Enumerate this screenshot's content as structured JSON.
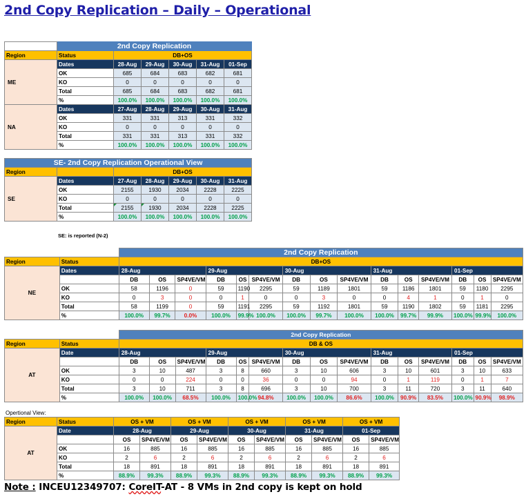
{
  "page_title": "2nd Copy Replication – Daily – Operational",
  "t1": {
    "title": "2nd Copy Replication",
    "region_label": "Region",
    "status_label": "Status",
    "group_label": "DB+OS",
    "blocks": [
      {
        "region": "ME",
        "dates_label": "Dates",
        "dates": [
          "28-Aug",
          "29-Aug",
          "30-Aug",
          "31-Aug",
          "01-Sep"
        ],
        "ok": [
          "685",
          "684",
          "683",
          "682",
          "681"
        ],
        "ko": [
          "0",
          "0",
          "0",
          "0",
          "0"
        ],
        "total": [
          "685",
          "684",
          "683",
          "682",
          "681"
        ],
        "pct": [
          "100.0%",
          "100.0%",
          "100.0%",
          "100.0%",
          "100.0%"
        ]
      },
      {
        "region": "NA",
        "dates_label": "Dates",
        "dates": [
          "27-Aug",
          "28-Aug",
          "29-Aug",
          "30-Aug",
          "31-Aug"
        ],
        "ok": [
          "331",
          "331",
          "313",
          "331",
          "332"
        ],
        "ko": [
          "0",
          "0",
          "0",
          "0",
          "0"
        ],
        "total": [
          "331",
          "331",
          "313",
          "331",
          "332"
        ],
        "pct": [
          "100.0%",
          "100.0%",
          "100.0%",
          "100.0%",
          "100.0%"
        ]
      }
    ],
    "row_labels": {
      "ok": "OK",
      "ko": "KO",
      "total": "Total",
      "pct": "%"
    }
  },
  "t2": {
    "title": "SE- 2nd Copy Replication Operational View",
    "region_label": "Region",
    "group_label": "DB+OS",
    "region": "SE",
    "dates_label": "Dates",
    "dates": [
      "27-Aug",
      "28-Aug",
      "29-Aug",
      "30-Aug",
      "31-Aug"
    ],
    "ok": [
      "2155",
      "1930",
      "2034",
      "2228",
      "2225"
    ],
    "ko": [
      "0",
      "0",
      "0",
      "0",
      "0"
    ],
    "total": [
      "2155",
      "1930",
      "2034",
      "2228",
      "2225"
    ],
    "pct": [
      "100.0%",
      "100.0%",
      "100.0%",
      "100.0%",
      "100.0%"
    ],
    "note": "SE: is reported (N-2)"
  },
  "t3": {
    "title": "2nd Copy Replication",
    "region_label": "Region",
    "status_label": "Status",
    "group_label": "DB+OS",
    "dates_label": "Dates",
    "region": "NE",
    "dates": [
      "28-Aug",
      "29-Aug",
      "30-Aug",
      "31-Aug",
      "01-Sep"
    ],
    "cols": [
      "DB",
      "OS",
      "SP4VE/VM"
    ],
    "ok": [
      "58",
      "1196",
      "0",
      "59",
      "1190",
      "2295",
      "59",
      "1189",
      "1801",
      "59",
      "1186",
      "1801",
      "59",
      "1180",
      "2295"
    ],
    "ko": [
      "0",
      "3",
      "0",
      "0",
      "1",
      "0",
      "0",
      "3",
      "0",
      "0",
      "4",
      "1",
      "0",
      "1",
      "0"
    ],
    "total": [
      "58",
      "1199",
      "0",
      "59",
      "1191",
      "2295",
      "59",
      "1192",
      "1801",
      "59",
      "1190",
      "1802",
      "59",
      "1181",
      "2295"
    ],
    "pct": [
      "100.0%",
      "99.7%",
      "0.0%",
      "100.0%",
      "99.9%",
      "100.0%",
      "100.0%",
      "99.7%",
      "100.0%",
      "100.0%",
      "99.7%",
      "99.9%",
      "100.0%",
      "99.9%",
      "100.0%"
    ]
  },
  "t4": {
    "title": "2nd Copy Replication",
    "region_label": "Region",
    "status_label": "Status",
    "group_label": "DB & OS",
    "dates_label": "Date",
    "region": "AT",
    "dates": [
      "28-Aug",
      "29-Aug",
      "30-Aug",
      "31-Aug",
      "01-Sep"
    ],
    "cols": [
      "DB",
      "OS",
      "SP4VE/VM"
    ],
    "ok": [
      "3",
      "10",
      "487",
      "3",
      "8",
      "660",
      "3",
      "10",
      "606",
      "3",
      "10",
      "601",
      "3",
      "10",
      "633"
    ],
    "ko": [
      "0",
      "0",
      "224",
      "0",
      "0",
      "36",
      "0",
      "0",
      "94",
      "0",
      "1",
      "119",
      "0",
      "1",
      "7"
    ],
    "total": [
      "3",
      "10",
      "711",
      "3",
      "8",
      "696",
      "3",
      "10",
      "700",
      "3",
      "11",
      "720",
      "3",
      "11",
      "640"
    ],
    "pct": [
      "100.0%",
      "100.0%",
      "68.5%",
      "100.0%",
      "100.0%",
      "94.8%",
      "100.0%",
      "100.0%",
      "86.6%",
      "100.0%",
      "90.9%",
      "83.5%",
      "100.0%",
      "90.9%",
      "98.9%"
    ]
  },
  "t5": {
    "label": "Opertional View:",
    "region_label": "Region",
    "status_label": "Status",
    "dates_label": "Date",
    "region": "AT",
    "group_label": "OS + VM",
    "dates": [
      "28-Aug",
      "29-Aug",
      "30-Aug",
      "31-Aug",
      "01-Sep"
    ],
    "cols": [
      "OS",
      "SP4VE/VM"
    ],
    "ok": [
      "16",
      "885",
      "16",
      "885",
      "16",
      "885",
      "16",
      "885",
      "16",
      "885"
    ],
    "ko": [
      "2",
      "6",
      "2",
      "6",
      "2",
      "6",
      "2",
      "6",
      "2",
      "6"
    ],
    "total": [
      "18",
      "891",
      "18",
      "891",
      "18",
      "891",
      "18",
      "891",
      "18",
      "891"
    ],
    "pct": [
      "88.9%",
      "99.3%",
      "88.9%",
      "99.3%",
      "88.9%",
      "99.3%",
      "88.9%",
      "99.3%",
      "88.9%",
      "99.3%"
    ]
  },
  "note": {
    "label": "Note :",
    "text_a": " INCEU12349707: ",
    "text_b": "CoreIT",
    "text_c": "-AT - 8 VMs in 2nd copy is kept on hold"
  }
}
